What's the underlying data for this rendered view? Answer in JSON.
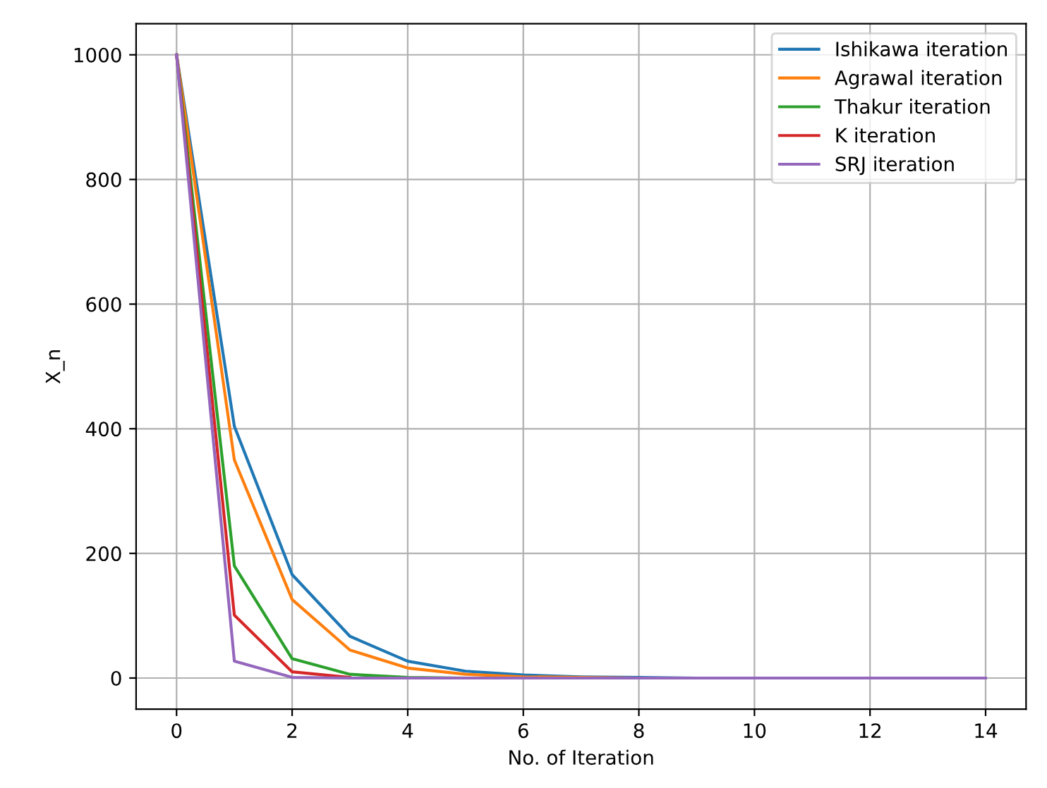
{
  "chart_data": {
    "type": "line",
    "xlabel": "No. of Iteration",
    "ylabel": "X_n",
    "x": [
      0,
      1,
      2,
      3,
      4,
      5,
      6,
      7,
      8,
      9,
      10,
      11,
      12,
      13,
      14
    ],
    "series": [
      {
        "name": "Ishikawa iteration",
        "color": "#1f77b4",
        "values": [
          1000,
          404,
          166,
          67,
          27,
          11,
          5,
          2,
          1,
          0,
          0,
          null,
          null,
          null,
          null
        ]
      },
      {
        "name": "Agrawal iteration",
        "color": "#ff7f0e",
        "values": [
          1000,
          350,
          126,
          45,
          16,
          6,
          2,
          1,
          0,
          null,
          null,
          null,
          null,
          null,
          null
        ]
      },
      {
        "name": "Thakur iteration",
        "color": "#2ca02c",
        "values": [
          1000,
          180,
          31,
          6,
          1,
          0,
          null,
          null,
          null,
          null,
          null,
          null,
          null,
          null,
          null
        ]
      },
      {
        "name": "K iteration",
        "color": "#d62728",
        "values": [
          1000,
          101,
          10,
          1,
          null,
          null,
          null,
          null,
          null,
          null,
          null,
          null,
          null,
          null,
          null
        ]
      },
      {
        "name": "SRJ iteration",
        "color": "#9467bd",
        "values": [
          1000,
          27,
          1,
          0,
          0,
          0,
          0,
          0,
          0,
          0,
          0,
          0,
          0,
          0,
          0
        ]
      }
    ],
    "xlim": [
      -0.7,
      14.7
    ],
    "ylim": [
      -50,
      1050
    ],
    "xticks": [
      0,
      2,
      4,
      6,
      8,
      10,
      12,
      14
    ],
    "yticks": [
      0,
      200,
      400,
      600,
      800,
      1000
    ],
    "grid": true,
    "legend": "top right"
  }
}
